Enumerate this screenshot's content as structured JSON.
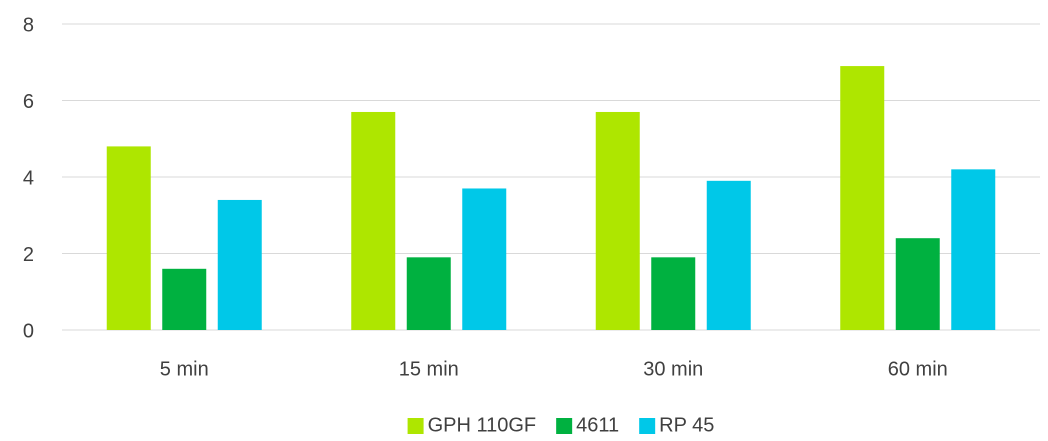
{
  "chart_data": {
    "type": "bar",
    "categories": [
      "5 min",
      "15 min",
      "30 min",
      "60 min"
    ],
    "series": [
      {
        "name": "GPH 110GF",
        "color": "#aee600",
        "values": [
          4.8,
          5.7,
          5.7,
          6.9
        ]
      },
      {
        "name": "4611",
        "color": "#00b140",
        "values": [
          1.6,
          1.9,
          1.9,
          2.4
        ]
      },
      {
        "name": "RP 45",
        "color": "#00c8e8",
        "values": [
          3.4,
          3.7,
          3.9,
          4.2
        ]
      }
    ],
    "ylim": [
      0,
      8
    ],
    "yticks": [
      0,
      2,
      4,
      6,
      8
    ],
    "grid": true,
    "legend": "bottom"
  }
}
